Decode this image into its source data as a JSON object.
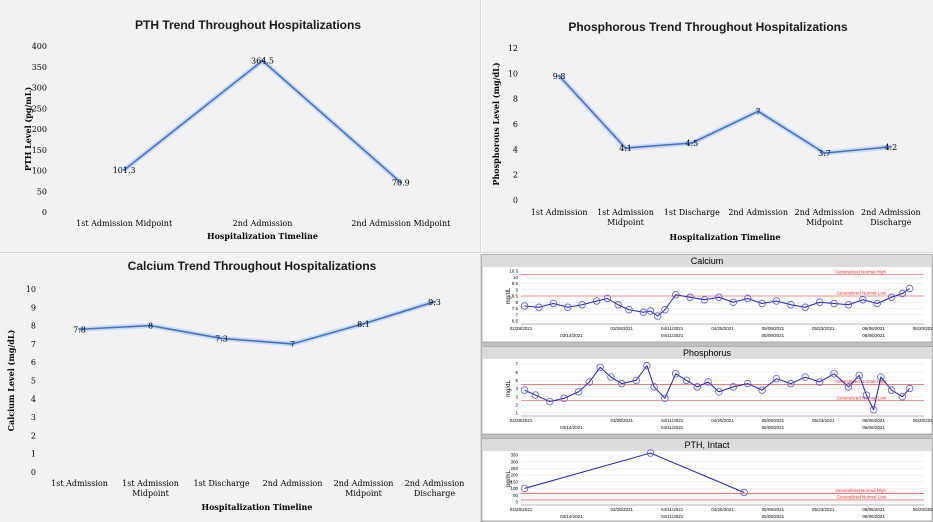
{
  "chart_data": [
    {
      "id": "pth",
      "type": "line",
      "title": "PTH Trend Throughout Hospitalizations",
      "xlabel": "Hospitalization Timeline",
      "ylabel": "PTH Level (pg/mL)",
      "ylim": [
        0,
        400
      ],
      "yticks": [
        0,
        50,
        100,
        150,
        200,
        250,
        300,
        350,
        400
      ],
      "categories": [
        "1st Admission Midpoint",
        "2nd Admission",
        "2nd Admission Midpoint"
      ],
      "values": [
        101.3,
        364.5,
        70.9
      ],
      "data_labels": [
        "101.3",
        "364.5",
        "70.9"
      ],
      "line_color": "#4472c4",
      "grid": false
    },
    {
      "id": "phos",
      "type": "line",
      "title": "Phosphorous Trend Throughout Hospitalizations",
      "xlabel": "Hospitalization Timeline",
      "ylabel": "Phosphorous Level (mg/dL)",
      "ylim": [
        0,
        12
      ],
      "yticks": [
        0,
        2,
        4,
        6,
        8,
        10,
        12
      ],
      "categories": [
        "1st Admission",
        "1st Admission Midpoint",
        "1st Discharge",
        "2nd Admission",
        "2nd Admission Midpoint",
        "2nd Admission Discharge"
      ],
      "values": [
        9.8,
        4.1,
        4.5,
        7,
        3.7,
        4.2
      ],
      "data_labels": [
        "9.8",
        "4.1",
        "4.5",
        "7",
        "3.7",
        "4.2"
      ],
      "line_color": "#4472c4",
      "grid": false
    },
    {
      "id": "calcium",
      "type": "line",
      "title": "Calcium Trend Throughout Hospitalizations",
      "xlabel": "Hospitalization Timeline",
      "ylabel": "Calcium Level (mg/dL)",
      "ylim": [
        0,
        10
      ],
      "yticks": [
        0,
        1,
        2,
        3,
        4,
        5,
        6,
        7,
        8,
        9,
        10
      ],
      "categories": [
        "1st Admission",
        "1st Admission Midpoint",
        "1st Discharge",
        "2nd Admission",
        "2nd Admission Midpoint",
        "2nd Admission Discharge"
      ],
      "values": [
        7.8,
        8,
        7.3,
        7,
        8.1,
        9.3
      ],
      "data_labels": [
        "7.8",
        "8",
        "7.3",
        "7",
        "8.1",
        "9.3"
      ],
      "line_color": "#4472c4",
      "grid": false
    },
    {
      "id": "lab-calcium",
      "type": "line",
      "title": "Calcium",
      "ylabel": "mg/dL",
      "ylim": [
        6.5,
        10.5
      ],
      "yticks": [
        "10.5",
        "10",
        "9.5",
        "9",
        "8.5",
        "8",
        "7.5",
        "7",
        "6.5"
      ],
      "xticks_top": [
        "02/28/2021",
        "03/28/2021",
        "04/11/2021",
        "04/25/2021",
        "05/09/2021",
        "05/23/2021",
        "06/06/2021",
        "06/20/2021"
      ],
      "xticks_bottom": [
        "03/14/2021",
        "04/11/2021",
        "05/09/2021",
        "06/06/2021"
      ],
      "reference_lines": [
        {
          "label": "Generalized Normal High",
          "value": 10.2
        },
        {
          "label": "Generalized Normal Low",
          "value": 8.5
        }
      ],
      "x_range": [
        "02/28/2021",
        "06/20/2021"
      ],
      "x": [
        "03/01/2021",
        "03/05/2021",
        "03/09/2021",
        "03/13/2021",
        "03/17/2021",
        "03/21/2021",
        "03/24/2021",
        "03/27/2021",
        "03/30/2021",
        "04/03/2021",
        "04/05/2021",
        "04/07/2021",
        "04/09/2021",
        "04/12/2021",
        "04/16/2021",
        "04/20/2021",
        "04/24/2021",
        "04/28/2021",
        "05/02/2021",
        "05/06/2021",
        "05/10/2021",
        "05/14/2021",
        "05/18/2021",
        "05/22/2021",
        "05/26/2021",
        "05/30/2021",
        "06/03/2021",
        "06/07/2021",
        "06/11/2021",
        "06/14/2021",
        "06/16/2021"
      ],
      "values": [
        7.7,
        7.6,
        7.9,
        7.6,
        7.8,
        8.1,
        8.3,
        7.8,
        7.4,
        7.2,
        7.3,
        6.9,
        7.4,
        8.6,
        8.4,
        8.2,
        8.4,
        8.0,
        8.3,
        7.9,
        8.1,
        7.8,
        7.6,
        8.0,
        7.9,
        7.8,
        8.2,
        7.9,
        8.4,
        8.7,
        9.1
      ],
      "line_color": "#1f1fb0"
    },
    {
      "id": "lab-phosphorus",
      "type": "line",
      "title": "Phosphorus",
      "ylabel": "mg/dL",
      "ylim": [
        1,
        7
      ],
      "yticks": [
        "7",
        "6",
        "5",
        "4",
        "3",
        "2",
        "1"
      ],
      "xticks_top": [
        "02/28/2021",
        "03/28/2021",
        "04/11/2021",
        "04/25/2021",
        "05/09/2021",
        "05/23/2021",
        "06/06/2021",
        "06/20/2021"
      ],
      "xticks_bottom": [
        "03/14/2021",
        "04/11/2021",
        "05/09/2021",
        "06/06/2021"
      ],
      "reference_lines": [
        {
          "label": "Generalized Normal High",
          "value": 4.5
        },
        {
          "label": "Generalized Normal Low",
          "value": 2.5
        }
      ],
      "x_range": [
        "02/28/2021",
        "06/20/2021"
      ],
      "x": [
        "03/01/2021",
        "03/04/2021",
        "03/08/2021",
        "03/12/2021",
        "03/16/2021",
        "03/19/2021",
        "03/22/2021",
        "03/25/2021",
        "03/28/2021",
        "04/01/2021",
        "04/04/2021",
        "04/06/2021",
        "04/09/2021",
        "04/12/2021",
        "04/15/2021",
        "04/18/2021",
        "04/21/2021",
        "04/24/2021",
        "04/28/2021",
        "05/02/2021",
        "05/06/2021",
        "05/10/2021",
        "05/14/2021",
        "05/18/2021",
        "05/22/2021",
        "05/26/2021",
        "05/30/2021",
        "06/02/2021",
        "06/04/2021",
        "06/06/2021",
        "06/08/2021",
        "06/11/2021",
        "06/14/2021",
        "06/16/2021"
      ],
      "values": [
        3.8,
        3.2,
        2.4,
        2.8,
        3.6,
        4.8,
        6.6,
        5.4,
        4.6,
        5.0,
        6.8,
        4.2,
        2.8,
        5.8,
        5.0,
        4.2,
        4.8,
        3.6,
        4.2,
        4.6,
        3.8,
        5.2,
        4.6,
        5.4,
        4.8,
        5.8,
        4.2,
        5.6,
        3.2,
        1.4,
        5.4,
        3.8,
        3.0,
        4.0
      ],
      "line_color": "#1f1fb0"
    },
    {
      "id": "lab-pth",
      "type": "line",
      "title": "PTH, Intact",
      "ylabel": "pg/mL",
      "ylim": [
        0,
        350
      ],
      "yticks": [
        "350",
        "300",
        "250",
        "200",
        "150",
        "100",
        "50",
        "0"
      ],
      "xticks_top": [
        "02/28/2021",
        "03/28/2021",
        "04/11/2021",
        "04/25/2021",
        "05/09/2021",
        "05/23/2021",
        "06/06/2021",
        "06/20/2021"
      ],
      "xticks_bottom": [
        "03/14/2021",
        "04/11/2021",
        "05/09/2021",
        "06/06/2021"
      ],
      "reference_lines": [
        {
          "label": "Generalized Normal High",
          "value": 65
        },
        {
          "label": "Generalized Normal Low",
          "value": 15
        }
      ],
      "x_range": [
        "02/28/2021",
        "06/20/2021"
      ],
      "x": [
        "03/01/2021",
        "04/05/2021",
        "05/01/2021"
      ],
      "values": [
        101.3,
        364.5,
        70.9
      ],
      "line_color": "#1f1fb0"
    }
  ]
}
